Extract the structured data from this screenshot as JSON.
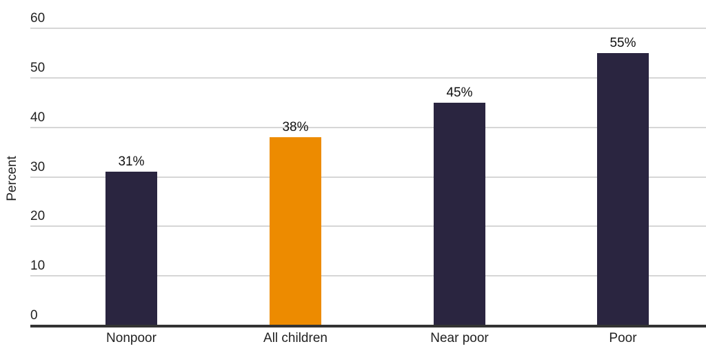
{
  "chart_data": {
    "type": "bar",
    "title": "",
    "xlabel": "",
    "ylabel": "Percent",
    "ylim": [
      0,
      60
    ],
    "yticks": [
      "0",
      "10",
      "20",
      "30",
      "40",
      "50",
      "60"
    ],
    "grid": true,
    "legend": null,
    "categories": [
      "Nonpoor",
      "All children",
      "Near poor",
      "Poor"
    ],
    "values": [
      31,
      38,
      45,
      55
    ],
    "value_labels": [
      "31%",
      "38%",
      "45%",
      "55%"
    ],
    "colors": [
      "#2a2540",
      "#ed8b00",
      "#2a2540",
      "#2a2540"
    ]
  }
}
